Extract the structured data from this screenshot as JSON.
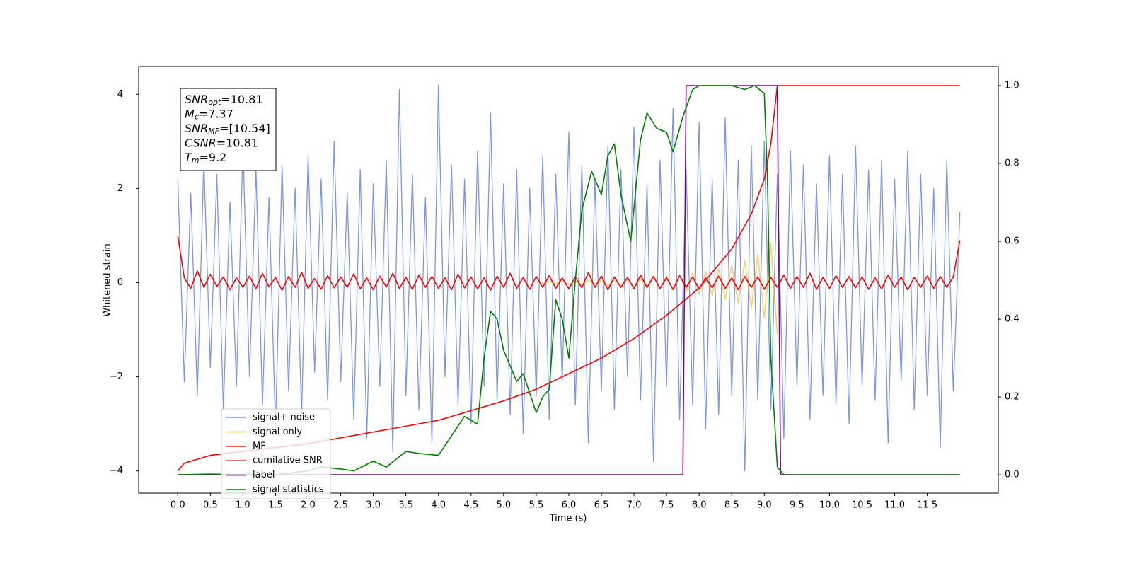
{
  "chart_data": {
    "type": "line",
    "xlabel": "Time (s)",
    "ylabel": "Whitened strain",
    "xlim": [
      -0.6,
      12.59
    ],
    "ylim": [
      -4.47,
      4.59
    ],
    "y2lim": [
      -0.047,
      1.049
    ],
    "xticks": [
      {
        "value": 0,
        "label": "0.0"
      },
      0.5,
      {
        "value": 1,
        "label": "1.0"
      },
      1.5,
      {
        "value": 2,
        "label": "2.0"
      },
      2.5,
      {
        "value": 3,
        "label": "3.0"
      },
      3.5,
      {
        "value": 4,
        "label": "4.0"
      },
      4.5,
      {
        "value": 5,
        "label": "5.0"
      },
      5.5,
      {
        "value": 6,
        "label": "6.0"
      },
      6.5,
      {
        "value": 7,
        "label": "7.0"
      },
      7.5,
      {
        "value": 8,
        "label": "8.0"
      },
      8.5,
      {
        "value": 9,
        "label": "9.0"
      },
      9.5,
      {
        "value": 10,
        "label": "10.0"
      },
      10.5,
      {
        "value": 11,
        "label": "11.0"
      },
      11.5
    ],
    "yticks": [
      {
        "value": -4,
        "label": "−4"
      },
      {
        "value": -2,
        "label": "−2"
      },
      0,
      2,
      4
    ],
    "y2ticks": [
      {
        "value": 0,
        "label": "0.0"
      },
      0.2,
      0.4,
      0.6,
      0.8,
      {
        "value": 1,
        "label": "1.0"
      }
    ],
    "legend": "lower left",
    "annotation": [
      {
        "symbol": "SNR",
        "sub": "opt",
        "text": "=10.81"
      },
      {
        "symbol": "M",
        "sub": "c",
        "text": "=7.37"
      },
      {
        "symbol": "SNR",
        "sub": "MF",
        "text": "=[10.54]"
      },
      {
        "symbol": "CSNR",
        "text": "=10.81"
      },
      {
        "symbol": "T",
        "sub": "m",
        "text": "=9.2"
      }
    ],
    "series": [
      {
        "name": "signal+ noise",
        "color": "#7b96e8",
        "x": [
          0,
          0.1,
          0.2,
          0.3,
          0.4,
          0.5,
          0.6,
          0.7,
          0.8,
          0.9,
          1,
          1.1,
          1.2,
          1.3,
          1.4,
          1.5,
          1.6,
          1.7,
          1.8,
          1.9,
          2,
          2.1,
          2.2,
          2.3,
          2.4,
          2.5,
          2.6,
          2.7,
          2.8,
          2.9,
          3,
          3.1,
          3.2,
          3.3,
          3.4,
          3.5,
          3.6,
          3.7,
          3.8,
          3.9,
          4,
          4.1,
          4.2,
          4.3,
          4.4,
          4.5,
          4.6,
          4.7,
          4.8,
          4.9,
          5,
          5.1,
          5.2,
          5.3,
          5.4,
          5.5,
          5.6,
          5.7,
          5.8,
          5.9,
          6,
          6.1,
          6.2,
          6.3,
          6.4,
          6.5,
          6.6,
          6.7,
          6.8,
          6.9,
          7,
          7.1,
          7.2,
          7.3,
          7.4,
          7.5,
          7.6,
          7.7,
          7.8,
          7.9,
          8,
          8.1,
          8.2,
          8.3,
          8.4,
          8.5,
          8.6,
          8.7,
          8.8,
          8.9,
          9,
          9.1,
          9.2,
          9.3,
          9.4,
          9.5,
          9.6,
          9.7,
          9.8,
          9.9,
          10,
          10.1,
          10.2,
          10.3,
          10.4,
          10.5,
          10.6,
          10.7,
          10.8,
          10.9,
          11,
          11.1,
          11.2,
          11.3,
          11.4,
          11.5,
          11.6,
          11.7,
          11.8,
          11.9,
          12
        ],
        "values": [
          2.2,
          -2.1,
          1.9,
          -2.4,
          2.6,
          -1.8,
          2.3,
          -2.7,
          1.7,
          -2.2,
          2.9,
          -2.0,
          2.4,
          -2.6,
          1.8,
          -3.1,
          2.5,
          -2.3,
          2.0,
          -2.8,
          2.7,
          -1.9,
          2.2,
          -2.5,
          3.0,
          -2.1,
          1.9,
          -2.9,
          2.4,
          -3.3,
          2.1,
          -2.2,
          2.6,
          -3.6,
          4.1,
          -2.4,
          2.3,
          -2.7,
          1.8,
          -3.4,
          4.2,
          -2.0,
          2.5,
          -2.6,
          2.2,
          -3.0,
          2.8,
          -2.2,
          3.6,
          -2.5,
          2.1,
          -2.8,
          2.4,
          -3.2,
          2.0,
          -2.4,
          2.7,
          -2.9,
          2.3,
          -2.1,
          3.2,
          -2.6,
          2.5,
          -3.4,
          2.2,
          -2.3,
          2.9,
          -2.7,
          2.4,
          -2.0,
          3.3,
          -2.5,
          2.1,
          -3.8,
          2.6,
          -2.2,
          3.7,
          -2.9,
          2.4,
          -2.6,
          3.4,
          -3.1,
          2.2,
          -2.8,
          3.5,
          -2.4,
          2.6,
          -4.0,
          2.9,
          -2.5,
          3.0,
          -2.7,
          2.3,
          -3.3,
          2.8,
          -2.2,
          2.5,
          -2.9,
          2.1,
          -2.4,
          2.7,
          -2.6,
          2.3,
          -3.0,
          2.9,
          -2.2,
          2.4,
          -2.5,
          2.6,
          -3.4,
          2.2,
          -2.1,
          2.8,
          -2.7,
          2.3,
          -2.4,
          2.0,
          -3.5,
          2.6,
          -2.3,
          1.5
        ]
      },
      {
        "name": "signal only",
        "color": "orange",
        "x": [
          5.5,
          5.6,
          5.7,
          5.8,
          5.9,
          6,
          6.1,
          6.2,
          6.3,
          6.4,
          6.5,
          6.6,
          6.7,
          6.8,
          6.9,
          7,
          7.1,
          7.2,
          7.3,
          7.4,
          7.5,
          7.6,
          7.7,
          7.8,
          7.9,
          8,
          8.1,
          8.2,
          8.3,
          8.4,
          8.5,
          8.6,
          8.7,
          8.8,
          8.9,
          9,
          9.1,
          9.2
        ],
        "values": [
          0.02,
          -0.02,
          0.03,
          -0.03,
          0.03,
          -0.04,
          0.04,
          -0.05,
          0.05,
          -0.06,
          0.06,
          -0.07,
          0.07,
          -0.08,
          0.09,
          -0.1,
          0.1,
          -0.12,
          0.12,
          -0.14,
          0.15,
          -0.17,
          0.17,
          -0.2,
          0.2,
          -0.24,
          0.24,
          -0.28,
          0.3,
          -0.35,
          0.37,
          -0.43,
          0.46,
          -0.55,
          0.6,
          -0.75,
          0.85,
          -1.1
        ]
      },
      {
        "name": "MF",
        "color": "#ff0000",
        "x": [
          0,
          0.1,
          0.2,
          0.3,
          0.4,
          0.5,
          0.6,
          0.7,
          0.8,
          0.9,
          1,
          1.1,
          1.2,
          1.3,
          1.4,
          1.5,
          1.6,
          1.7,
          1.8,
          1.9,
          2,
          2.1,
          2.2,
          2.3,
          2.4,
          2.5,
          2.6,
          2.7,
          2.8,
          2.9,
          3,
          3.1,
          3.2,
          3.3,
          3.4,
          3.5,
          3.6,
          3.7,
          3.8,
          3.9,
          4,
          4.1,
          4.2,
          4.3,
          4.4,
          4.5,
          4.6,
          4.7,
          4.8,
          4.9,
          5,
          5.1,
          5.2,
          5.3,
          5.4,
          5.5,
          5.6,
          5.7,
          5.8,
          5.9,
          6,
          6.1,
          6.2,
          6.3,
          6.4,
          6.5,
          6.6,
          6.7,
          6.8,
          6.9,
          7,
          7.1,
          7.2,
          7.3,
          7.4,
          7.5,
          7.6,
          7.7,
          7.8,
          7.9,
          8,
          8.1,
          8.2,
          8.3,
          8.4,
          8.5,
          8.6,
          8.7,
          8.8,
          8.9,
          9,
          9.1,
          9.2,
          9.3,
          9.4,
          9.5,
          9.6,
          9.7,
          9.8,
          9.9,
          10,
          10.1,
          10.2,
          10.3,
          10.4,
          10.5,
          10.6,
          10.7,
          10.8,
          10.9,
          11,
          11.1,
          11.2,
          11.3,
          11.4,
          11.5,
          11.6,
          11.7,
          11.8,
          11.9,
          12
        ],
        "values": [
          1.0,
          0.1,
          -0.12,
          0.25,
          -0.1,
          0.18,
          -0.08,
          0.12,
          -0.15,
          0.1,
          -0.1,
          0.14,
          -0.13,
          0.2,
          -0.09,
          0.11,
          -0.16,
          0.13,
          -0.1,
          0.22,
          -0.12,
          0.09,
          -0.14,
          0.15,
          -0.11,
          0.12,
          -0.1,
          0.19,
          -0.13,
          0.1,
          -0.15,
          0.14,
          -0.09,
          0.2,
          -0.12,
          0.11,
          -0.14,
          0.16,
          -0.1,
          0.13,
          -0.12,
          0.1,
          -0.15,
          0.18,
          -0.11,
          0.12,
          -0.13,
          0.1,
          -0.16,
          0.14,
          -0.1,
          0.2,
          -0.12,
          0.11,
          -0.14,
          0.13,
          -0.1,
          0.15,
          -0.12,
          0.1,
          -0.13,
          0.12,
          -0.11,
          0.22,
          -0.1,
          0.14,
          -0.15,
          0.12,
          -0.1,
          0.11,
          -0.13,
          0.16,
          -0.1,
          0.13,
          -0.12,
          0.1,
          -0.14,
          0.15,
          -0.1,
          0.12,
          -0.13,
          0.1,
          -0.11,
          0.14,
          -0.12,
          0.1,
          -0.15,
          0.13,
          -0.1,
          0.12,
          -0.14,
          0.11,
          -0.1,
          0.16,
          -0.12,
          0.13,
          -0.1,
          0.2,
          -0.14,
          0.11,
          -0.12,
          0.15,
          -0.1,
          0.13,
          -0.11,
          0.12,
          -0.14,
          0.1,
          -0.13,
          0.16,
          -0.1,
          0.12,
          -0.15,
          0.11,
          -0.1,
          0.14,
          -0.12,
          0.13,
          -0.1,
          0.12,
          0.9
        ]
      },
      {
        "name": "cumilative SNR",
        "color": "#ff0000",
        "axis": "y2",
        "x": [
          0,
          0.1,
          0.5,
          1,
          2,
          3,
          4,
          5,
          5.5,
          6,
          6.5,
          7,
          7.5,
          8,
          8.5,
          8.8,
          9,
          9.1,
          9.2,
          12
        ],
        "values": [
          0.01,
          0.03,
          0.05,
          0.06,
          0.08,
          0.11,
          0.14,
          0.19,
          0.22,
          0.26,
          0.3,
          0.35,
          0.41,
          0.48,
          0.58,
          0.67,
          0.76,
          0.85,
          1.0,
          1.0
        ]
      },
      {
        "name": "label",
        "color": "#800080",
        "axis": "y2",
        "x": [
          0,
          7.75,
          7.8,
          9.2,
          9.25,
          12
        ],
        "values": [
          0,
          0,
          1,
          1,
          0,
          0
        ]
      },
      {
        "name": "signal statistics",
        "color": "#008000",
        "axis": "y2",
        "x": [
          0,
          0.5,
          1,
          1.5,
          2,
          2.2,
          2.5,
          2.7,
          3,
          3.2,
          3.5,
          3.7,
          4,
          4.2,
          4.4,
          4.6,
          4.7,
          4.8,
          4.9,
          5,
          5.1,
          5.2,
          5.3,
          5.5,
          5.6,
          5.7,
          5.8,
          5.9,
          6,
          6.1,
          6.2,
          6.35,
          6.5,
          6.6,
          6.7,
          6.8,
          6.95,
          7.1,
          7.2,
          7.35,
          7.5,
          7.6,
          7.75,
          7.9,
          8,
          8.5,
          8.7,
          8.85,
          9,
          9.05,
          9.1,
          9.2,
          9.3,
          12
        ],
        "values": [
          0,
          0.002,
          0,
          0,
          0.01,
          0.02,
          0.015,
          0.01,
          0.035,
          0.02,
          0.06,
          0.055,
          0.05,
          0.1,
          0.15,
          0.13,
          0.3,
          0.42,
          0.4,
          0.32,
          0.28,
          0.24,
          0.26,
          0.16,
          0.2,
          0.22,
          0.45,
          0.4,
          0.3,
          0.5,
          0.68,
          0.78,
          0.72,
          0.82,
          0.85,
          0.72,
          0.6,
          0.86,
          0.93,
          0.89,
          0.88,
          0.83,
          0.92,
          0.99,
          1.0,
          1.0,
          0.99,
          1.0,
          0.98,
          0.75,
          0.3,
          0.02,
          0.0,
          0.0
        ]
      }
    ]
  }
}
